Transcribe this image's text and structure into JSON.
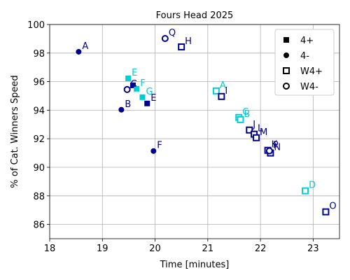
{
  "chart_data": {
    "type": "scatter",
    "title": "Fours Head 2025",
    "x_label": "Time [minutes]",
    "y_label": "% of Cat. Winners Speed",
    "xlim": [
      18,
      23.5
    ],
    "ylim": [
      85,
      100
    ],
    "xticks": [
      18,
      19,
      20,
      21,
      22,
      23
    ],
    "yticks": [
      86,
      88,
      90,
      92,
      94,
      96,
      98,
      100
    ],
    "grid": true,
    "legend": "upper right",
    "legend_color": "#000000",
    "series": [
      {
        "name": "4+",
        "marker": "filled-square",
        "x": [
          19.49,
          19.58,
          19.65,
          19.76,
          19.85
        ],
        "values": [
          96.23,
          95.74,
          95.5,
          94.91,
          94.47
        ],
        "colors": [
          "#00ced1",
          "#00008b",
          "#00ced1",
          "#00ced1",
          "#00008b"
        ],
        "labels": [
          "E",
          null,
          "F",
          "G",
          "E"
        ]
      },
      {
        "name": "4-",
        "marker": "filled-circle",
        "x": [
          18.55,
          19.36,
          19.97
        ],
        "values": [
          98.09,
          94.03,
          91.14
        ],
        "colors": [
          "#00008b",
          "#00008b",
          "#00008b"
        ],
        "labels": [
          "A",
          "B",
          "F"
        ]
      },
      {
        "name": "W4+",
        "marker": "open-square",
        "x": [
          20.5,
          21.16,
          21.26,
          21.59,
          21.62,
          21.79,
          21.88,
          21.92,
          22.14,
          22.19,
          22.85,
          23.24
        ],
        "values": [
          98.43,
          95.35,
          94.96,
          93.49,
          93.34,
          92.61,
          92.32,
          92.07,
          91.19,
          91.0,
          88.35,
          86.88
        ],
        "colors": [
          "#00008b",
          "#00ced1",
          "#00008b",
          "#00ced1",
          "#00ced1",
          "#00008b",
          "#00008b",
          "#00008b",
          "#00008b",
          "#00008b",
          "#00ced1",
          "#00008b"
        ],
        "labels": [
          "H",
          "A",
          "I",
          "C",
          "B",
          "J",
          "L",
          "M",
          "K",
          "N",
          "D",
          "O"
        ]
      },
      {
        "name": "W4-",
        "marker": "open-circle",
        "x": [
          20.19,
          19.47,
          22.17
        ],
        "values": [
          99.02,
          95.45,
          91.15
        ],
        "colors": [
          "#00008b",
          "#00008b",
          "#00008b"
        ],
        "labels": [
          "Q",
          "C",
          "P"
        ]
      }
    ]
  }
}
